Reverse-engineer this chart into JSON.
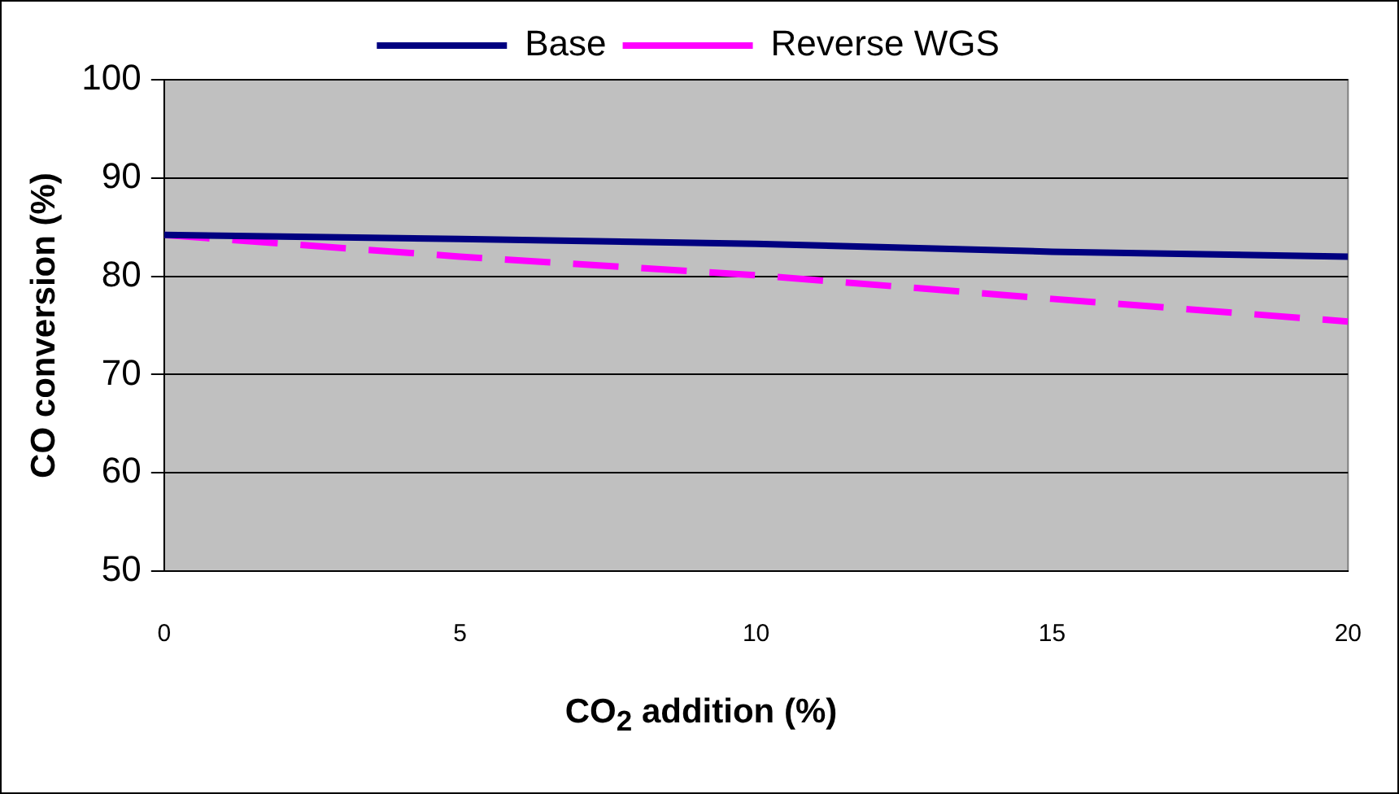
{
  "chart_data": {
    "type": "line",
    "xlabel": "CO$_{2}$ addition (%)",
    "ylabel": "CO conversion (%)",
    "x": [
      0,
      5,
      10,
      15,
      20
    ],
    "series": [
      {
        "name": "Base",
        "color": "#000080",
        "values": [
          84.2,
          83.8,
          83.3,
          82.5,
          82.0
        ],
        "line_style": "solid"
      },
      {
        "name": "Reverse WGS",
        "color": "#ff00ff",
        "values": [
          84.2,
          82.0,
          80.1,
          77.7,
          75.4
        ],
        "line_style": "dashed"
      }
    ],
    "xlim": [
      0,
      20
    ],
    "xticks": [
      0,
      5,
      10,
      15,
      20
    ],
    "ylim": [
      50,
      100
    ],
    "yticks": [
      50,
      60,
      70,
      80,
      90,
      100
    ],
    "grid": "y",
    "legend": "top",
    "marker": "none"
  }
}
